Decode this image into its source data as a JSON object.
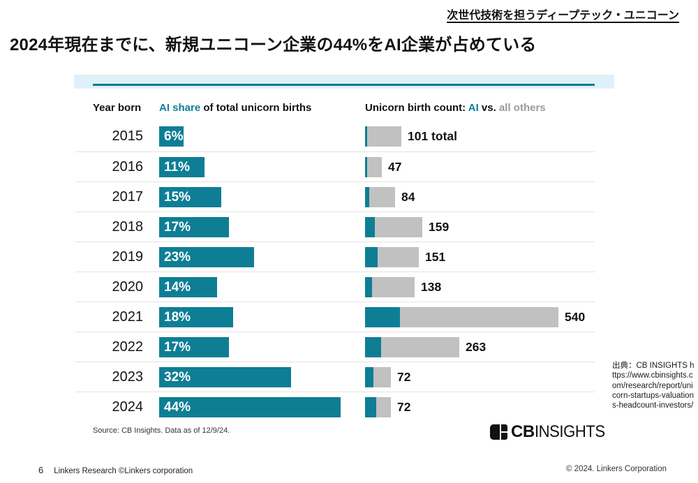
{
  "page": {
    "tag": "次世代技術を担うディープテック・ユニコーン",
    "title": "2024年現在までに、新規ユニコーン企業の44%をAI企業が占めている",
    "source_note": "Source: CB Insights. Data as of 12/9/24.",
    "citation": "出典：CB INSIGHTS https://www.cbinsights.com/research/report/unicorn-startups-valuations-headcount-investors/",
    "page_number": "6",
    "footer_left": "Linkers Research ©Linkers corporation",
    "footer_right": "© 2024. Linkers Corporation",
    "logo_cb": "CB",
    "logo_insights": "INSIGHTS"
  },
  "chart_data": {
    "type": "bar",
    "title": "AI share of total unicorn births and unicorn birth count by year born",
    "columns": {
      "col1": "Year born",
      "col2_accent": "AI share",
      "col2_rest": " of total unicorn births",
      "col3_prefix": "Unicorn birth count: ",
      "col3_accent": "AI",
      "col3_mid": " vs. ",
      "col3_muted": "all others"
    },
    "categories": [
      "2015",
      "2016",
      "2017",
      "2018",
      "2019",
      "2020",
      "2021",
      "2022",
      "2023",
      "2024"
    ],
    "series": [
      {
        "name": "AI share of total unicorn births (%)",
        "values": [
          6,
          11,
          15,
          17,
          23,
          14,
          18,
          17,
          32,
          44
        ]
      },
      {
        "name": "Unicorn birth count (total)",
        "values": [
          101,
          47,
          84,
          159,
          151,
          138,
          540,
          263,
          72,
          72
        ]
      }
    ],
    "pct_labels": [
      "6%",
      "11%",
      "15%",
      "17%",
      "23%",
      "14%",
      "18%",
      "17%",
      "32%",
      "44%"
    ],
    "count_labels": [
      "101 total",
      "47",
      "84",
      "159",
      "151",
      "138",
      "540",
      "263",
      "72",
      "72"
    ],
    "colors": {
      "ai": "#0e7e95",
      "others": "#c1c1c1",
      "band": "#ddf2f8",
      "accent_text": "#0f7f98"
    },
    "legend_position": "header-inline",
    "grid": "row-separators"
  }
}
